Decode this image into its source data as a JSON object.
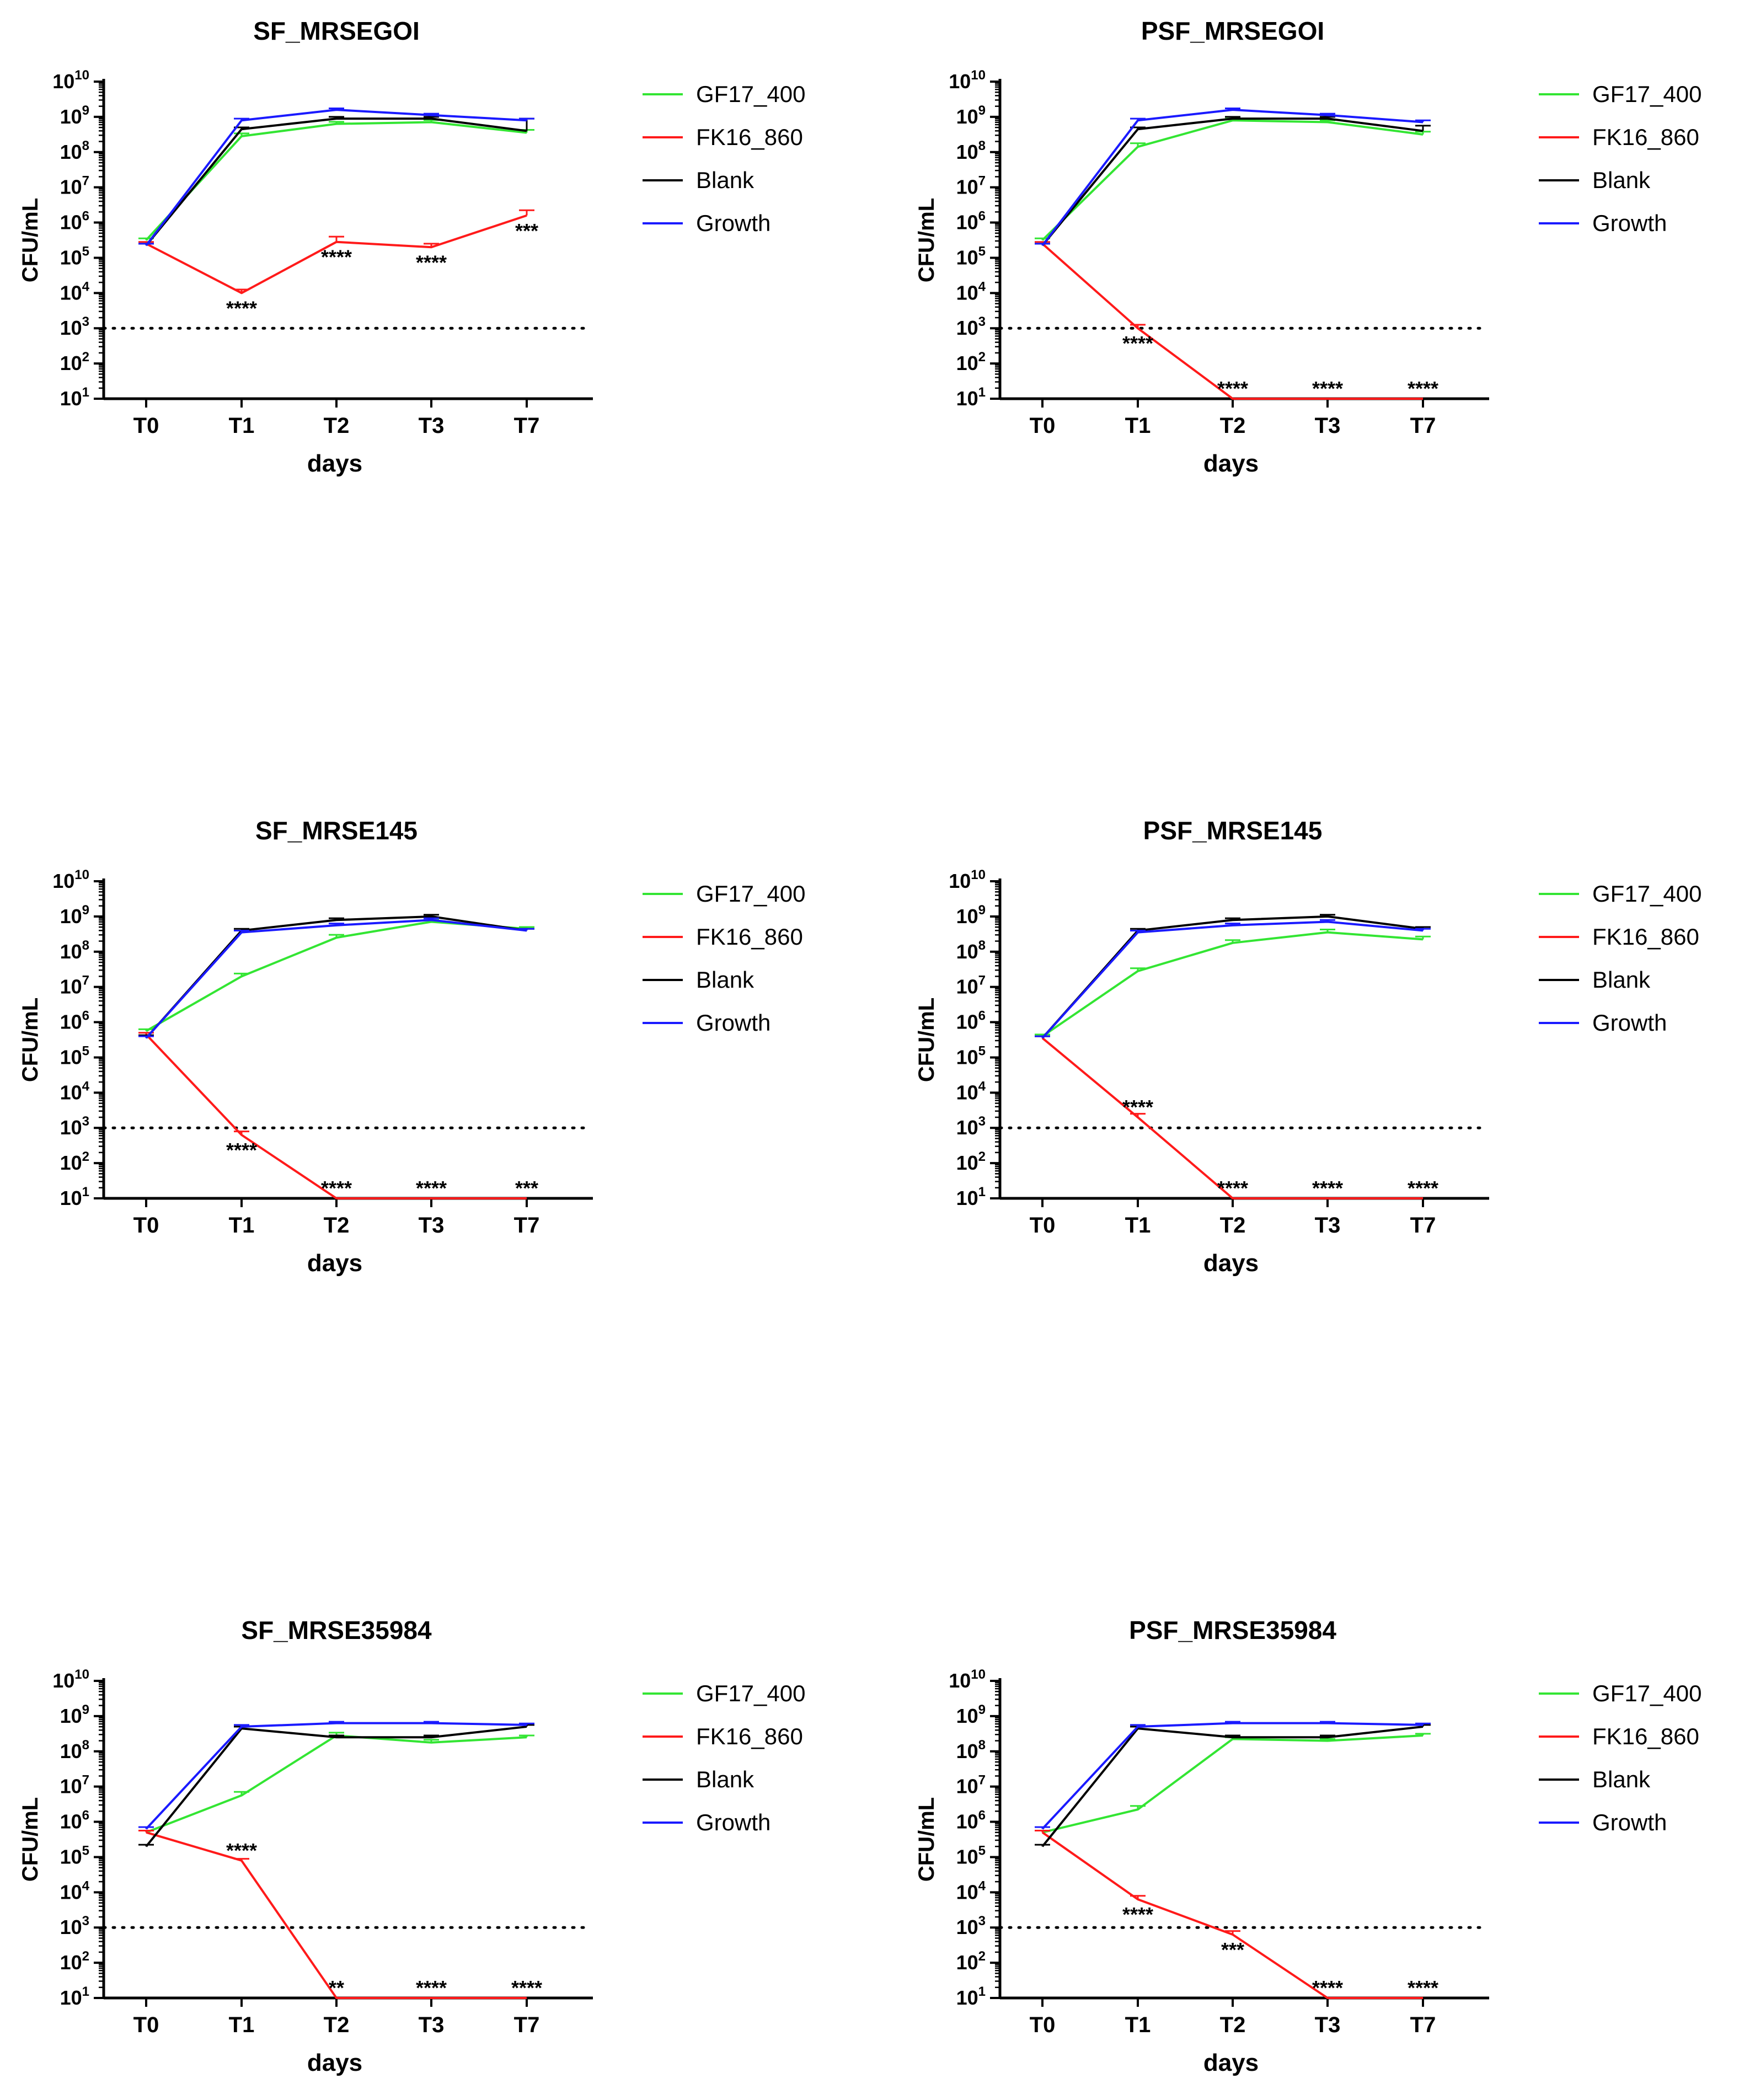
{
  "chart_data": [
    {
      "type": "line",
      "title": "SF_MRSEGOI",
      "xlabel": "days",
      "ylabel": "CFU/mL",
      "categories": [
        "T0",
        "T1",
        "T2",
        "T3",
        "T7"
      ],
      "y_scale": "log10",
      "ylim_exponents": [
        1,
        10
      ],
      "ytick_exponents": [
        1,
        2,
        3,
        4,
        5,
        6,
        7,
        8,
        9,
        10
      ],
      "detection_limit_exponent": 3,
      "series": [
        {
          "name": "GF17_400",
          "color": "#33e533",
          "log_values": [
            5.5,
            8.45,
            8.8,
            8.85,
            8.55
          ],
          "log_err": [
            0.05,
            0.08,
            0.06,
            0.06,
            0.08
          ]
        },
        {
          "name": "FK16_860",
          "color": "#ff1a1a",
          "log_values": [
            5.4,
            4.0,
            5.45,
            5.3,
            6.2
          ],
          "log_err": [
            0.05,
            0.1,
            0.15,
            0.1,
            0.15
          ]
        },
        {
          "name": "Blank",
          "color": "#000000",
          "log_values": [
            5.35,
            8.65,
            8.95,
            8.95,
            8.6
          ],
          "log_err": [
            0.05,
            0.05,
            0.05,
            0.05,
            0.35
          ]
        },
        {
          "name": "Growth",
          "color": "#1a1aff",
          "log_values": [
            5.35,
            8.9,
            9.2,
            9.05,
            8.9
          ],
          "log_err": [
            0.05,
            0.05,
            0.04,
            0.04,
            0.05
          ]
        }
      ],
      "significance": [
        {
          "index": 1,
          "label": "****",
          "position": "below"
        },
        {
          "index": 2,
          "label": "****",
          "position": "below"
        },
        {
          "index": 3,
          "label": "****",
          "position": "below"
        },
        {
          "index": 4,
          "label": "***",
          "position": "below"
        }
      ]
    },
    {
      "type": "line",
      "title": "PSF_MRSEGOI",
      "xlabel": "days",
      "ylabel": "CFU/mL",
      "categories": [
        "T0",
        "T1",
        "T2",
        "T3",
        "T7"
      ],
      "y_scale": "log10",
      "ylim_exponents": [
        1,
        10
      ],
      "ytick_exponents": [
        1,
        2,
        3,
        4,
        5,
        6,
        7,
        8,
        9,
        10
      ],
      "detection_limit_exponent": 3,
      "series": [
        {
          "name": "GF17_400",
          "color": "#33e533",
          "log_values": [
            5.5,
            8.15,
            8.9,
            8.85,
            8.5
          ],
          "log_err": [
            0.05,
            0.1,
            0.05,
            0.05,
            0.08
          ]
        },
        {
          "name": "FK16_860",
          "color": "#ff1a1a",
          "log_values": [
            5.4,
            3.0,
            1.0,
            1.0,
            1.0
          ],
          "log_err": [
            0.05,
            0.1,
            0,
            0,
            0
          ]
        },
        {
          "name": "Blank",
          "color": "#000000",
          "log_values": [
            5.35,
            8.65,
            8.95,
            8.95,
            8.6
          ],
          "log_err": [
            0.05,
            0.05,
            0.05,
            0.05,
            0.15
          ]
        },
        {
          "name": "Growth",
          "color": "#1a1aff",
          "log_values": [
            5.35,
            8.9,
            9.2,
            9.05,
            8.85
          ],
          "log_err": [
            0.05,
            0.05,
            0.04,
            0.04,
            0.05
          ]
        }
      ],
      "significance": [
        {
          "index": 1,
          "label": "****",
          "position": "below"
        },
        {
          "index": 2,
          "label": "****",
          "position": "above"
        },
        {
          "index": 3,
          "label": "****",
          "position": "above"
        },
        {
          "index": 4,
          "label": "****",
          "position": "above"
        }
      ]
    },
    {
      "type": "line",
      "title": "SF_MRSE145",
      "xlabel": "days",
      "ylabel": "CFU/mL",
      "categories": [
        "T0",
        "T1",
        "T2",
        "T3",
        "T7"
      ],
      "y_scale": "log10",
      "ylim_exponents": [
        1,
        10
      ],
      "ytick_exponents": [
        1,
        2,
        3,
        4,
        5,
        6,
        7,
        8,
        9,
        10
      ],
      "detection_limit_exponent": 3,
      "series": [
        {
          "name": "GF17_400",
          "color": "#33e533",
          "log_values": [
            5.75,
            7.3,
            8.4,
            8.85,
            8.65
          ],
          "log_err": [
            0.05,
            0.08,
            0.08,
            0.05,
            0.05
          ]
        },
        {
          "name": "FK16_860",
          "color": "#ff1a1a",
          "log_values": [
            5.65,
            2.8,
            1.0,
            1.0,
            1.0
          ],
          "log_err": [
            0.05,
            0.1,
            0,
            0,
            0
          ]
        },
        {
          "name": "Blank",
          "color": "#000000",
          "log_values": [
            5.55,
            8.6,
            8.9,
            9.0,
            8.6
          ],
          "log_err": [
            0.08,
            0.05,
            0.05,
            0.05,
            0.05
          ]
        },
        {
          "name": "Growth",
          "color": "#1a1aff",
          "log_values": [
            5.55,
            8.55,
            8.75,
            8.9,
            8.6
          ],
          "log_err": [
            0.05,
            0.05,
            0.05,
            0.05,
            0.05
          ]
        }
      ],
      "significance": [
        {
          "index": 1,
          "label": "****",
          "position": "below"
        },
        {
          "index": 2,
          "label": "****",
          "position": "above"
        },
        {
          "index": 3,
          "label": "****",
          "position": "above"
        },
        {
          "index": 4,
          "label": "***",
          "position": "above"
        }
      ]
    },
    {
      "type": "line",
      "title": "PSF_MRSE145",
      "xlabel": "days",
      "ylabel": "CFU/mL",
      "categories": [
        "T0",
        "T1",
        "T2",
        "T3",
        "T7"
      ],
      "y_scale": "log10",
      "ylim_exponents": [
        1,
        10
      ],
      "ytick_exponents": [
        1,
        2,
        3,
        4,
        5,
        6,
        7,
        8,
        9,
        10
      ],
      "detection_limit_exponent": 3,
      "series": [
        {
          "name": "GF17_400",
          "color": "#33e533",
          "log_values": [
            5.6,
            7.45,
            8.25,
            8.55,
            8.35
          ],
          "log_err": [
            0.05,
            0.08,
            0.08,
            0.08,
            0.08
          ]
        },
        {
          "name": "FK16_860",
          "color": "#ff1a1a",
          "log_values": [
            5.55,
            3.3,
            1.0,
            1.0,
            1.0
          ],
          "log_err": [
            0.05,
            0.1,
            0,
            0,
            0
          ]
        },
        {
          "name": "Blank",
          "color": "#000000",
          "log_values": [
            5.55,
            8.6,
            8.9,
            9.0,
            8.65
          ],
          "log_err": [
            0.05,
            0.05,
            0.05,
            0.05,
            0.05
          ]
        },
        {
          "name": "Growth",
          "color": "#1a1aff",
          "log_values": [
            5.55,
            8.55,
            8.75,
            8.85,
            8.6
          ],
          "log_err": [
            0.05,
            0.05,
            0.05,
            0.05,
            0.05
          ]
        }
      ],
      "significance": [
        {
          "index": 1,
          "label": "****",
          "position": "above"
        },
        {
          "index": 2,
          "label": "****",
          "position": "above"
        },
        {
          "index": 3,
          "label": "****",
          "position": "above"
        },
        {
          "index": 4,
          "label": "****",
          "position": "above"
        }
      ]
    },
    {
      "type": "line",
      "title": "SF_MRSE35984",
      "xlabel": "days",
      "ylabel": "CFU/mL",
      "categories": [
        "T0",
        "T1",
        "T2",
        "T3",
        "T7"
      ],
      "y_scale": "log10",
      "ylim_exponents": [
        1,
        10
      ],
      "ytick_exponents": [
        1,
        2,
        3,
        4,
        5,
        6,
        7,
        8,
        9,
        10
      ],
      "detection_limit_exponent": 3,
      "series": [
        {
          "name": "GF17_400",
          "color": "#33e533",
          "log_values": [
            5.7,
            6.75,
            8.45,
            8.25,
            8.4
          ],
          "log_err": [
            0.05,
            0.1,
            0.08,
            0.08,
            0.05
          ]
        },
        {
          "name": "FK16_860",
          "color": "#ff1a1a",
          "log_values": [
            5.7,
            4.9,
            1.0,
            1.0,
            1.0
          ],
          "log_err": [
            0.05,
            0.05,
            0,
            0,
            0
          ]
        },
        {
          "name": "Blank",
          "color": "#000000",
          "log_values": [
            5.3,
            8.65,
            8.4,
            8.4,
            8.7
          ],
          "log_err": [
            0.05,
            0.05,
            0.05,
            0.05,
            0.05
          ]
        },
        {
          "name": "Growth",
          "color": "#1a1aff",
          "log_values": [
            5.8,
            8.7,
            8.8,
            8.8,
            8.75
          ],
          "log_err": [
            0.05,
            0.05,
            0.04,
            0.04,
            0.04
          ]
        }
      ],
      "significance": [
        {
          "index": 1,
          "label": "****",
          "position": "above"
        },
        {
          "index": 2,
          "label": "**",
          "position": "above"
        },
        {
          "index": 3,
          "label": "****",
          "position": "above"
        },
        {
          "index": 4,
          "label": "****",
          "position": "above"
        }
      ]
    },
    {
      "type": "line",
      "title": "PSF_MRSE35984",
      "xlabel": "days",
      "ylabel": "CFU/mL",
      "categories": [
        "T0",
        "T1",
        "T2",
        "T3",
        "T7"
      ],
      "y_scale": "log10",
      "ylim_exponents": [
        1,
        10
      ],
      "ytick_exponents": [
        1,
        2,
        3,
        4,
        5,
        6,
        7,
        8,
        9,
        10
      ],
      "detection_limit_exponent": 3,
      "series": [
        {
          "name": "GF17_400",
          "color": "#33e533",
          "log_values": [
            5.7,
            6.35,
            8.35,
            8.3,
            8.45
          ],
          "log_err": [
            0.05,
            0.1,
            0.05,
            0.05,
            0.05
          ]
        },
        {
          "name": "FK16_860",
          "color": "#ff1a1a",
          "log_values": [
            5.7,
            3.8,
            2.8,
            1.0,
            1.0
          ],
          "log_err": [
            0.05,
            0.1,
            0.1,
            0,
            0
          ]
        },
        {
          "name": "Blank",
          "color": "#000000",
          "log_values": [
            5.3,
            8.65,
            8.4,
            8.4,
            8.7
          ],
          "log_err": [
            0.05,
            0.05,
            0.05,
            0.05,
            0.05
          ]
        },
        {
          "name": "Growth",
          "color": "#1a1aff",
          "log_values": [
            5.8,
            8.7,
            8.8,
            8.8,
            8.75
          ],
          "log_err": [
            0.05,
            0.05,
            0.04,
            0.04,
            0.04
          ]
        }
      ],
      "significance": [
        {
          "index": 1,
          "label": "****",
          "position": "below"
        },
        {
          "index": 2,
          "label": "***",
          "position": "below"
        },
        {
          "index": 3,
          "label": "****",
          "position": "above"
        },
        {
          "index": 4,
          "label": "****",
          "position": "above"
        }
      ]
    }
  ]
}
